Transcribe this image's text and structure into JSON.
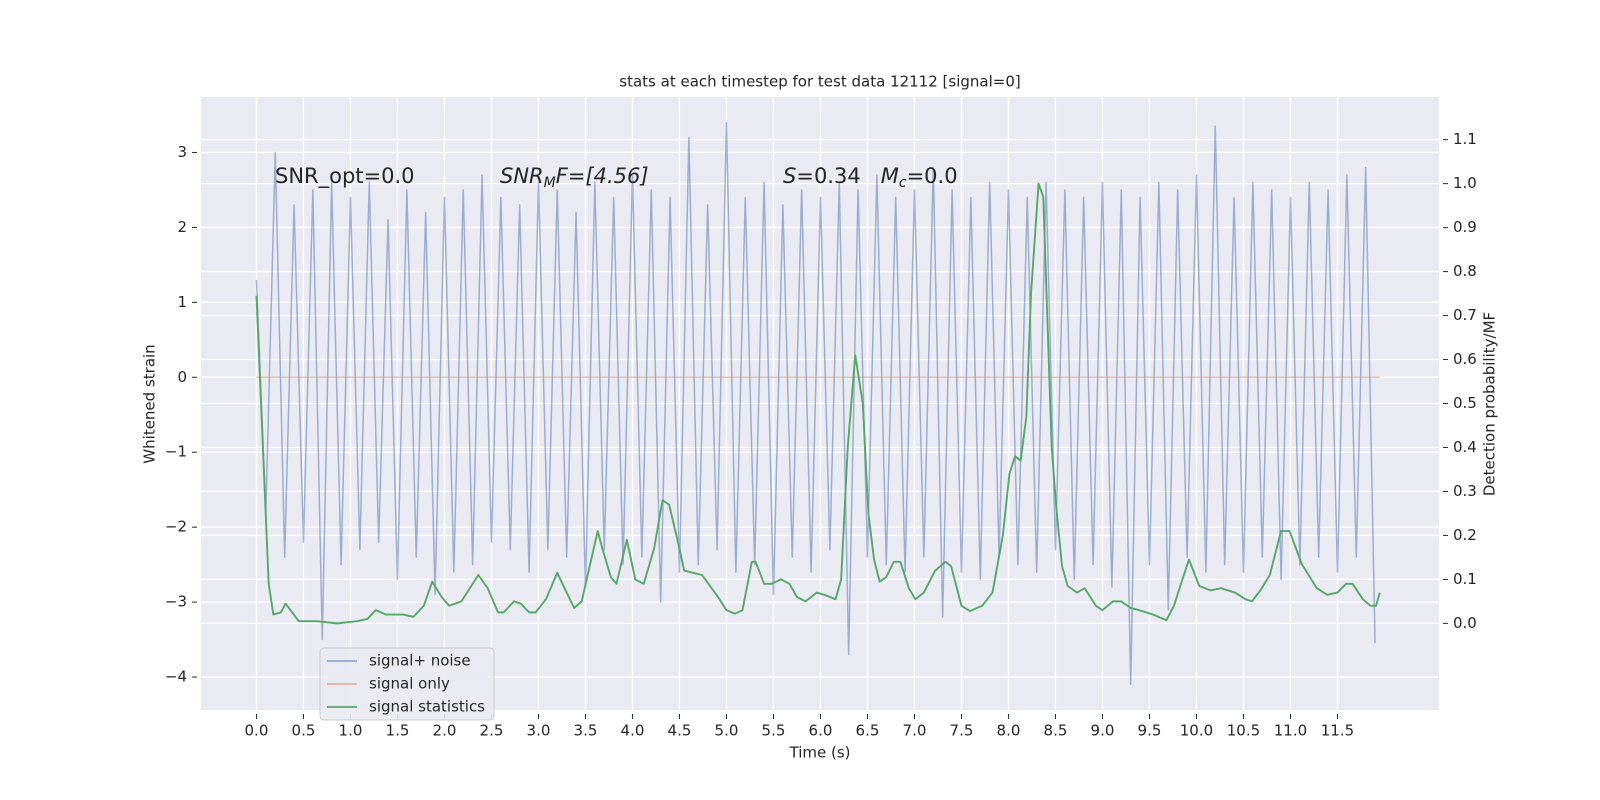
{
  "chart_data": {
    "type": "line",
    "title": "stats at each timestep for test data 12112 [signal=0]",
    "x_label": "Time (s)",
    "y_label": "Whitened strain",
    "y2_label": "Detection probability/MF",
    "annotations": [
      {
        "parts": [
          "SNR_opt=0.0"
        ]
      },
      {
        "parts": [
          "SNR",
          "M",
          "F=[4.56]"
        ]
      },
      {
        "parts": [
          "S",
          "=0.34   ",
          "M",
          "c",
          "=0.0"
        ]
      }
    ],
    "xlim": [
      -0.59,
      12.58
    ],
    "ylim": [
      -4.44,
      3.74
    ],
    "y2lim": [
      -0.197,
      1.197
    ],
    "xticks": [
      {
        "value": 0,
        "label": "0.0"
      },
      0.5,
      {
        "value": 1,
        "label": "1.0"
      },
      1.5,
      {
        "value": 2,
        "label": "2.0"
      },
      2.5,
      {
        "value": 3,
        "label": "3.0"
      },
      3.5,
      {
        "value": 4,
        "label": "4.0"
      },
      4.5,
      {
        "value": 5,
        "label": "5.0"
      },
      5.5,
      {
        "value": 6,
        "label": "6.0"
      },
      6.5,
      {
        "value": 7,
        "label": "7.0"
      },
      7.5,
      {
        "value": 8,
        "label": "8.0"
      },
      8.5,
      {
        "value": 9,
        "label": "9.0"
      },
      9.5,
      {
        "value": 10,
        "label": "10.0"
      },
      10.5,
      {
        "value": 11,
        "label": "11.0"
      },
      11.5
    ],
    "yticks": [
      {
        "value": -4,
        "label": "−4"
      },
      {
        "value": -3,
        "label": "−3"
      },
      {
        "value": -2,
        "label": "−2"
      },
      {
        "value": -1,
        "label": "−1"
      },
      0,
      1,
      2,
      3
    ],
    "y2ticks": [
      {
        "value": 0,
        "label": "0.0"
      },
      0.1,
      0.2,
      0.3,
      0.4,
      0.5,
      0.6,
      0.7,
      0.8,
      0.9,
      {
        "value": 1,
        "label": "1.0"
      },
      1.1
    ],
    "grid": true,
    "background": "#eaeaf2",
    "legend": "lower left",
    "series": [
      {
        "name": "signal+ noise",
        "color": "#4c72b0",
        "x": [
          0,
          0.1,
          0.2,
          0.3,
          0.4,
          0.5,
          0.6,
          0.7,
          0.8,
          0.9,
          1,
          1.1,
          1.2,
          1.3,
          1.4,
          1.5,
          1.6,
          1.7,
          1.8,
          1.9,
          2,
          2.1,
          2.2,
          2.3,
          2.4,
          2.5,
          2.6,
          2.7,
          2.8,
          2.9,
          3,
          3.1,
          3.2,
          3.3,
          3.4,
          3.5,
          3.6,
          3.7,
          3.8,
          3.9,
          4,
          4.1,
          4.2,
          4.3,
          4.4,
          4.5,
          4.6,
          4.7,
          4.8,
          4.9,
          5,
          5.1,
          5.2,
          5.3,
          5.4,
          5.5,
          5.6,
          5.7,
          5.8,
          5.9,
          6,
          6.1,
          6.2,
          6.3,
          6.4,
          6.5,
          6.6,
          6.7,
          6.8,
          6.9,
          7,
          7.1,
          7.2,
          7.3,
          7.4,
          7.5,
          7.6,
          7.7,
          7.8,
          7.9,
          8,
          8.1,
          8.2,
          8.3,
          8.4,
          8.5,
          8.6,
          8.7,
          8.8,
          8.9,
          9,
          9.1,
          9.2,
          9.3,
          9.4,
          9.5,
          9.6,
          9.7,
          9.8,
          9.9,
          10,
          10.1,
          10.2,
          10.3,
          10.4,
          10.5,
          10.6,
          10.7,
          10.8,
          10.9,
          11,
          11.1,
          11.2,
          11.3,
          11.4,
          11.5,
          11.6,
          11.7,
          11.8,
          11.9
        ],
        "values": [
          1.3,
          -1.8,
          3.0,
          -2.4,
          2.3,
          -2.2,
          2.5,
          -3.5,
          2.6,
          -2.5,
          2.4,
          -2.3,
          2.6,
          -2.2,
          2.1,
          -2.7,
          2.5,
          -2.4,
          2.2,
          -2.9,
          2.4,
          -2.6,
          2.5,
          -2.5,
          2.7,
          -2.2,
          2.4,
          -2.3,
          2.3,
          -2.6,
          2.6,
          -2.3,
          2.5,
          -2.4,
          2.2,
          -2.8,
          2.6,
          -2.3,
          2.4,
          -2.5,
          2.7,
          -2.4,
          2.5,
          -3.0,
          2.4,
          -2.6,
          3.2,
          -2.5,
          2.3,
          -2.3,
          3.4,
          -2.6,
          2.4,
          -2.5,
          2.6,
          -2.9,
          2.3,
          -2.4,
          2.5,
          -2.6,
          2.4,
          -2.3,
          2.6,
          -3.7,
          2.5,
          -2.4,
          2.7,
          -2.5,
          2.4,
          -2.6,
          2.5,
          -2.4,
          2.8,
          -3.2,
          2.5,
          -2.6,
          2.4,
          -2.7,
          2.6,
          -2.4,
          2.5,
          -2.5,
          2.4,
          -2.6,
          2.6,
          -2.3,
          2.5,
          -2.7,
          2.4,
          -2.5,
          2.6,
          -2.8,
          2.5,
          -4.1,
          2.4,
          -2.5,
          2.6,
          -3.1,
          2.5,
          -2.4,
          2.7,
          -2.6,
          3.35,
          -2.5,
          2.4,
          -2.6,
          2.6,
          -2.4,
          2.5,
          -2.7,
          2.4,
          -2.5,
          2.6,
          -2.4,
          2.5,
          -2.6,
          2.7,
          -2.4,
          2.8,
          -3.55
        ]
      },
      {
        "name": "signal only",
        "color": "#dd8452",
        "x": [
          0,
          11.95
        ],
        "values": [
          0,
          0
        ]
      },
      {
        "name": "signal statistics",
        "color": "#55a868",
        "axis": "y2",
        "x": [
          0,
          0.13,
          0.18,
          0.26,
          0.31,
          0.45,
          0.64,
          0.86,
          1.07,
          1.18,
          1.27,
          1.38,
          1.56,
          1.67,
          1.78,
          1.87,
          1.97,
          2.05,
          2.18,
          2.36,
          2.46,
          2.57,
          2.63,
          2.74,
          2.81,
          2.9,
          2.97,
          3.08,
          3.2,
          3.3,
          3.38,
          3.46,
          3.63,
          3.68,
          3.77,
          3.83,
          3.94,
          4.03,
          4.12,
          4.23,
          4.32,
          4.39,
          4.5,
          4.55,
          4.74,
          4.91,
          5.0,
          5.09,
          5.17,
          5.27,
          5.31,
          5.4,
          5.48,
          5.58,
          5.67,
          5.75,
          5.84,
          5.96,
          6.04,
          6.16,
          6.22,
          6.29,
          6.37,
          6.45,
          6.51,
          6.57,
          6.63,
          6.7,
          6.78,
          6.85,
          6.94,
          7.01,
          7.1,
          7.22,
          7.33,
          7.39,
          7.5,
          7.59,
          7.72,
          7.83,
          7.94,
          8.01,
          8.07,
          8.13,
          8.19,
          8.24,
          8.32,
          8.37,
          8.46,
          8.51,
          8.57,
          8.63,
          8.73,
          8.81,
          8.93,
          9.0,
          9.11,
          9.2,
          9.3,
          9.39,
          9.54,
          9.68,
          9.76,
          9.85,
          9.92,
          10.03,
          10.15,
          10.26,
          10.41,
          10.52,
          10.59,
          10.68,
          10.78,
          10.9,
          10.99,
          11.12,
          11.28,
          11.39,
          11.5,
          11.59,
          11.66,
          11.77,
          11.85,
          11.91,
          11.95
        ],
        "values": [
          0.745,
          0.09,
          0.02,
          0.025,
          0.045,
          0.005,
          0.005,
          0.0,
          0.005,
          0.01,
          0.03,
          0.02,
          0.02,
          0.015,
          0.04,
          0.095,
          0.06,
          0.04,
          0.05,
          0.11,
          0.08,
          0.025,
          0.025,
          0.05,
          0.045,
          0.025,
          0.025,
          0.055,
          0.115,
          0.07,
          0.035,
          0.05,
          0.21,
          0.17,
          0.105,
          0.09,
          0.19,
          0.1,
          0.09,
          0.17,
          0.28,
          0.27,
          0.17,
          0.12,
          0.11,
          0.06,
          0.03,
          0.022,
          0.03,
          0.14,
          0.14,
          0.09,
          0.09,
          0.1,
          0.09,
          0.06,
          0.05,
          0.07,
          0.065,
          0.055,
          0.1,
          0.4,
          0.61,
          0.5,
          0.25,
          0.145,
          0.095,
          0.105,
          0.14,
          0.14,
          0.08,
          0.055,
          0.07,
          0.12,
          0.14,
          0.13,
          0.04,
          0.028,
          0.04,
          0.07,
          0.2,
          0.34,
          0.38,
          0.37,
          0.47,
          0.75,
          1.0,
          0.97,
          0.4,
          0.26,
          0.13,
          0.085,
          0.07,
          0.08,
          0.04,
          0.03,
          0.05,
          0.05,
          0.035,
          0.03,
          0.02,
          0.007,
          0.04,
          0.1,
          0.145,
          0.085,
          0.075,
          0.08,
          0.07,
          0.055,
          0.05,
          0.075,
          0.11,
          0.21,
          0.21,
          0.135,
          0.08,
          0.065,
          0.07,
          0.09,
          0.09,
          0.055,
          0.04,
          0.04,
          0.07
        ]
      }
    ]
  }
}
